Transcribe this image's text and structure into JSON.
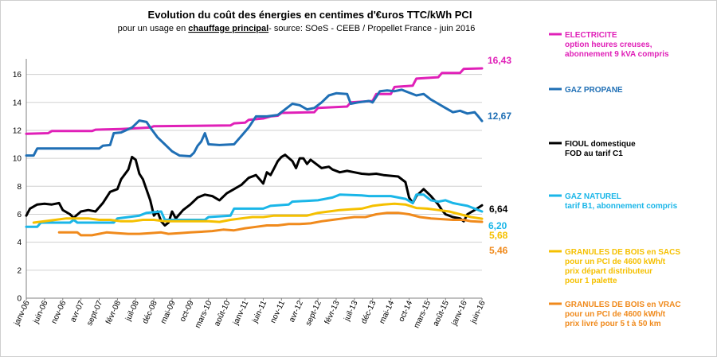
{
  "chart_data": {
    "type": "line",
    "title": "Evolution du coût des énergies en centimes d'€uros TTC/kWh PCI",
    "subtitle_prefix": "pour un usage en ",
    "subtitle_underlined": "chauffage principal",
    "subtitle_suffix": "- source: SOeS - CEEB / Propellet France -   juin 2016",
    "ylim": [
      0,
      17
    ],
    "y_ticks": [
      0,
      2,
      4,
      6,
      8,
      10,
      12,
      14,
      16
    ],
    "x_range": [
      0,
      125
    ],
    "x_tick_labels": [
      "janv-06",
      "juin-06",
      "nov-06",
      "avr-07",
      "sept-07",
      "févr-08",
      "juil-08",
      "déc-08",
      "mai-09",
      "oct-09",
      "mars-10",
      "août-10",
      "janv-11",
      "juin-11",
      "nov-11",
      "avr-12",
      "sept-12",
      "févr-13",
      "juil-13",
      "déc-13",
      "mai-14",
      "oct-14",
      "mars-15",
      "août-15",
      "janv-16",
      "juin-16"
    ],
    "series": [
      {
        "name": "electricite",
        "color": "#e020b8",
        "legend": [
          "ELECTRICITE",
          "option heures creuses,",
          "abonnement 9 kVA compris"
        ],
        "end_label": "16,43",
        "points": [
          [
            0,
            11.75
          ],
          [
            6,
            11.8
          ],
          [
            7,
            11.95
          ],
          [
            18,
            11.95
          ],
          [
            19,
            12.05
          ],
          [
            26,
            12.1
          ],
          [
            34,
            12.2
          ],
          [
            35,
            12.3
          ],
          [
            56,
            12.35
          ],
          [
            57,
            12.5
          ],
          [
            60,
            12.55
          ],
          [
            61,
            12.75
          ],
          [
            65,
            12.85
          ],
          [
            67,
            13.0
          ],
          [
            69,
            13.05
          ],
          [
            70,
            13.25
          ],
          [
            79,
            13.3
          ],
          [
            80,
            13.6
          ],
          [
            88,
            13.7
          ],
          [
            89,
            14.0
          ],
          [
            95,
            14.1
          ],
          [
            96,
            14.6
          ],
          [
            100,
            14.6
          ],
          [
            101,
            15.1
          ],
          [
            106,
            15.2
          ],
          [
            107,
            15.7
          ],
          [
            113,
            15.8
          ],
          [
            114,
            16.1
          ],
          [
            119,
            16.1
          ],
          [
            120,
            16.4
          ],
          [
            125,
            16.43
          ]
        ]
      },
      {
        "name": "gaz_propane",
        "color": "#1f6fb5",
        "legend": [
          "GAZ PROPANE"
        ],
        "end_label": "12,67",
        "points": [
          [
            0,
            10.2
          ],
          [
            2,
            10.2
          ],
          [
            3,
            10.7
          ],
          [
            20,
            10.7
          ],
          [
            21,
            10.9
          ],
          [
            23,
            10.95
          ],
          [
            24,
            11.8
          ],
          [
            26,
            11.85
          ],
          [
            29,
            12.2
          ],
          [
            31,
            12.7
          ],
          [
            33,
            12.6
          ],
          [
            34,
            12.2
          ],
          [
            36,
            11.5
          ],
          [
            38,
            11.0
          ],
          [
            40,
            10.5
          ],
          [
            42,
            10.2
          ],
          [
            45,
            10.15
          ],
          [
            46,
            10.4
          ],
          [
            47,
            10.9
          ],
          [
            48,
            11.2
          ],
          [
            49,
            11.8
          ],
          [
            50,
            11.0
          ],
          [
            53,
            10.95
          ],
          [
            57,
            11.0
          ],
          [
            59,
            11.6
          ],
          [
            61,
            12.2
          ],
          [
            63,
            13.0
          ],
          [
            66,
            13.0
          ],
          [
            69,
            13.1
          ],
          [
            71,
            13.5
          ],
          [
            73,
            13.9
          ],
          [
            75,
            13.8
          ],
          [
            77,
            13.5
          ],
          [
            79,
            13.6
          ],
          [
            81,
            14.0
          ],
          [
            83,
            14.5
          ],
          [
            85,
            14.65
          ],
          [
            88,
            14.6
          ],
          [
            89,
            13.9
          ],
          [
            91,
            14.0
          ],
          [
            94,
            14.1
          ],
          [
            95,
            14.0
          ],
          [
            97,
            14.8
          ],
          [
            99,
            14.85
          ],
          [
            101,
            14.8
          ],
          [
            103,
            14.9
          ],
          [
            105,
            14.7
          ],
          [
            107,
            14.5
          ],
          [
            109,
            14.6
          ],
          [
            111,
            14.2
          ],
          [
            113,
            13.9
          ],
          [
            115,
            13.6
          ],
          [
            117,
            13.3
          ],
          [
            119,
            13.4
          ],
          [
            121,
            13.2
          ],
          [
            123,
            13.3
          ],
          [
            124,
            13.0
          ],
          [
            125,
            12.67
          ]
        ]
      },
      {
        "name": "fioul",
        "color": "#000000",
        "legend": [
          "FIOUL domestique",
          "FOD au tarif C1"
        ],
        "end_label": "6,64",
        "points": [
          [
            0,
            5.9
          ],
          [
            1,
            6.4
          ],
          [
            3,
            6.7
          ],
          [
            5,
            6.75
          ],
          [
            7,
            6.7
          ],
          [
            9,
            6.8
          ],
          [
            10,
            6.3
          ],
          [
            12,
            6.0
          ],
          [
            13,
            5.75
          ],
          [
            15,
            6.2
          ],
          [
            17,
            6.3
          ],
          [
            19,
            6.2
          ],
          [
            21,
            6.8
          ],
          [
            23,
            7.6
          ],
          [
            25,
            7.8
          ],
          [
            26,
            8.5
          ],
          [
            28,
            9.2
          ],
          [
            29,
            10.1
          ],
          [
            30,
            9.9
          ],
          [
            31,
            8.9
          ],
          [
            32,
            8.5
          ],
          [
            34,
            7.0
          ],
          [
            35,
            5.9
          ],
          [
            36,
            6.2
          ],
          [
            37,
            5.5
          ],
          [
            38,
            5.2
          ],
          [
            39,
            5.4
          ],
          [
            40,
            6.2
          ],
          [
            41,
            5.7
          ],
          [
            42,
            6.0
          ],
          [
            43,
            6.3
          ],
          [
            45,
            6.7
          ],
          [
            47,
            7.2
          ],
          [
            49,
            7.4
          ],
          [
            51,
            7.3
          ],
          [
            53,
            7.0
          ],
          [
            55,
            7.5
          ],
          [
            57,
            7.8
          ],
          [
            59,
            8.1
          ],
          [
            61,
            8.6
          ],
          [
            63,
            8.8
          ],
          [
            64,
            8.5
          ],
          [
            65,
            8.2
          ],
          [
            66,
            9.0
          ],
          [
            67,
            8.8
          ],
          [
            68,
            9.3
          ],
          [
            69,
            9.8
          ],
          [
            70,
            10.1
          ],
          [
            71,
            10.25
          ],
          [
            73,
            9.8
          ],
          [
            74,
            9.3
          ],
          [
            75,
            10.0
          ],
          [
            76,
            10.0
          ],
          [
            77,
            9.6
          ],
          [
            78,
            9.9
          ],
          [
            79,
            9.7
          ],
          [
            81,
            9.3
          ],
          [
            83,
            9.4
          ],
          [
            84,
            9.2
          ],
          [
            86,
            9.0
          ],
          [
            88,
            9.1
          ],
          [
            90,
            9.0
          ],
          [
            92,
            8.9
          ],
          [
            94,
            8.85
          ],
          [
            96,
            8.9
          ],
          [
            98,
            8.8
          ],
          [
            100,
            8.75
          ],
          [
            102,
            8.7
          ],
          [
            104,
            8.3
          ],
          [
            105,
            7.2
          ],
          [
            106,
            6.8
          ],
          [
            107,
            7.3
          ],
          [
            109,
            7.8
          ],
          [
            111,
            7.3
          ],
          [
            113,
            6.7
          ],
          [
            114,
            6.3
          ],
          [
            115,
            6.0
          ],
          [
            117,
            5.8
          ],
          [
            119,
            5.7
          ],
          [
            120,
            5.5
          ],
          [
            121,
            6.0
          ],
          [
            123,
            6.3
          ],
          [
            125,
            6.64
          ]
        ]
      },
      {
        "name": "gaz_naturel",
        "color": "#1ab6e8",
        "legend": [
          "GAZ NATUREL",
          "tarif B1, abonnement compris"
        ],
        "end_label": "6,20",
        "points": [
          [
            0,
            5.1
          ],
          [
            3,
            5.1
          ],
          [
            4,
            5.4
          ],
          [
            12,
            5.4
          ],
          [
            13,
            5.6
          ],
          [
            14,
            5.4
          ],
          [
            24,
            5.4
          ],
          [
            25,
            5.7
          ],
          [
            31,
            5.9
          ],
          [
            33,
            6.1
          ],
          [
            37,
            6.2
          ],
          [
            38,
            5.6
          ],
          [
            49,
            5.6
          ],
          [
            50,
            5.8
          ],
          [
            56,
            5.9
          ],
          [
            57,
            6.4
          ],
          [
            65,
            6.4
          ],
          [
            67,
            6.6
          ],
          [
            72,
            6.7
          ],
          [
            73,
            6.9
          ],
          [
            80,
            7.0
          ],
          [
            84,
            7.2
          ],
          [
            86,
            7.4
          ],
          [
            92,
            7.35
          ],
          [
            94,
            7.3
          ],
          [
            100,
            7.3
          ],
          [
            104,
            7.1
          ],
          [
            106,
            6.8
          ],
          [
            107,
            7.4
          ],
          [
            109,
            7.4
          ],
          [
            111,
            7.0
          ],
          [
            113,
            6.9
          ],
          [
            115,
            7.0
          ],
          [
            117,
            6.8
          ],
          [
            119,
            6.7
          ],
          [
            121,
            6.6
          ],
          [
            123,
            6.4
          ],
          [
            125,
            6.2
          ]
        ]
      },
      {
        "name": "granules_sacs",
        "color": "#f5c000",
        "legend": [
          "GRANULES DE BOIS en SACS",
          "pour un PCI de 4600 kWh/t",
          "prix départ distributeur",
          "pour 1 palette"
        ],
        "end_label": "5,68",
        "points": [
          [
            2,
            5.4
          ],
          [
            5,
            5.5
          ],
          [
            8,
            5.6
          ],
          [
            11,
            5.7
          ],
          [
            14,
            5.7
          ],
          [
            17,
            5.7
          ],
          [
            20,
            5.6
          ],
          [
            23,
            5.6
          ],
          [
            26,
            5.5
          ],
          [
            29,
            5.5
          ],
          [
            32,
            5.6
          ],
          [
            35,
            5.6
          ],
          [
            38,
            5.5
          ],
          [
            41,
            5.5
          ],
          [
            44,
            5.5
          ],
          [
            47,
            5.5
          ],
          [
            50,
            5.5
          ],
          [
            53,
            5.45
          ],
          [
            56,
            5.6
          ],
          [
            59,
            5.7
          ],
          [
            62,
            5.8
          ],
          [
            65,
            5.8
          ],
          [
            68,
            5.9
          ],
          [
            71,
            5.9
          ],
          [
            74,
            5.9
          ],
          [
            77,
            5.9
          ],
          [
            80,
            6.1
          ],
          [
            83,
            6.2
          ],
          [
            86,
            6.3
          ],
          [
            89,
            6.35
          ],
          [
            92,
            6.4
          ],
          [
            95,
            6.6
          ],
          [
            98,
            6.7
          ],
          [
            101,
            6.75
          ],
          [
            104,
            6.7
          ],
          [
            107,
            6.45
          ],
          [
            110,
            6.4
          ],
          [
            113,
            6.3
          ],
          [
            116,
            6.2
          ],
          [
            119,
            6.0
          ],
          [
            122,
            5.8
          ],
          [
            125,
            5.68
          ]
        ]
      },
      {
        "name": "granules_vrac",
        "color": "#f08a1c",
        "legend": [
          "GRANULES DE BOIS en VRAC",
          "pour un PCI de 4600 kWh/t",
          "prix livré pour 5 t à 50 km"
        ],
        "end_label": "5,46",
        "points": [
          [
            9,
            4.7
          ],
          [
            12,
            4.7
          ],
          [
            14,
            4.7
          ],
          [
            15,
            4.5
          ],
          [
            18,
            4.5
          ],
          [
            20,
            4.6
          ],
          [
            22,
            4.7
          ],
          [
            25,
            4.65
          ],
          [
            28,
            4.6
          ],
          [
            31,
            4.6
          ],
          [
            34,
            4.65
          ],
          [
            37,
            4.7
          ],
          [
            39,
            4.6
          ],
          [
            42,
            4.65
          ],
          [
            45,
            4.7
          ],
          [
            48,
            4.75
          ],
          [
            51,
            4.8
          ],
          [
            54,
            4.9
          ],
          [
            57,
            4.85
          ],
          [
            60,
            5.0
          ],
          [
            63,
            5.1
          ],
          [
            66,
            5.2
          ],
          [
            69,
            5.2
          ],
          [
            72,
            5.3
          ],
          [
            75,
            5.3
          ],
          [
            78,
            5.35
          ],
          [
            81,
            5.5
          ],
          [
            84,
            5.6
          ],
          [
            87,
            5.7
          ],
          [
            90,
            5.8
          ],
          [
            93,
            5.8
          ],
          [
            96,
            6.0
          ],
          [
            99,
            6.1
          ],
          [
            102,
            6.1
          ],
          [
            105,
            6.0
          ],
          [
            108,
            5.8
          ],
          [
            111,
            5.7
          ],
          [
            114,
            5.65
          ],
          [
            117,
            5.6
          ],
          [
            120,
            5.6
          ],
          [
            122,
            5.5
          ],
          [
            125,
            5.46
          ]
        ]
      }
    ]
  }
}
